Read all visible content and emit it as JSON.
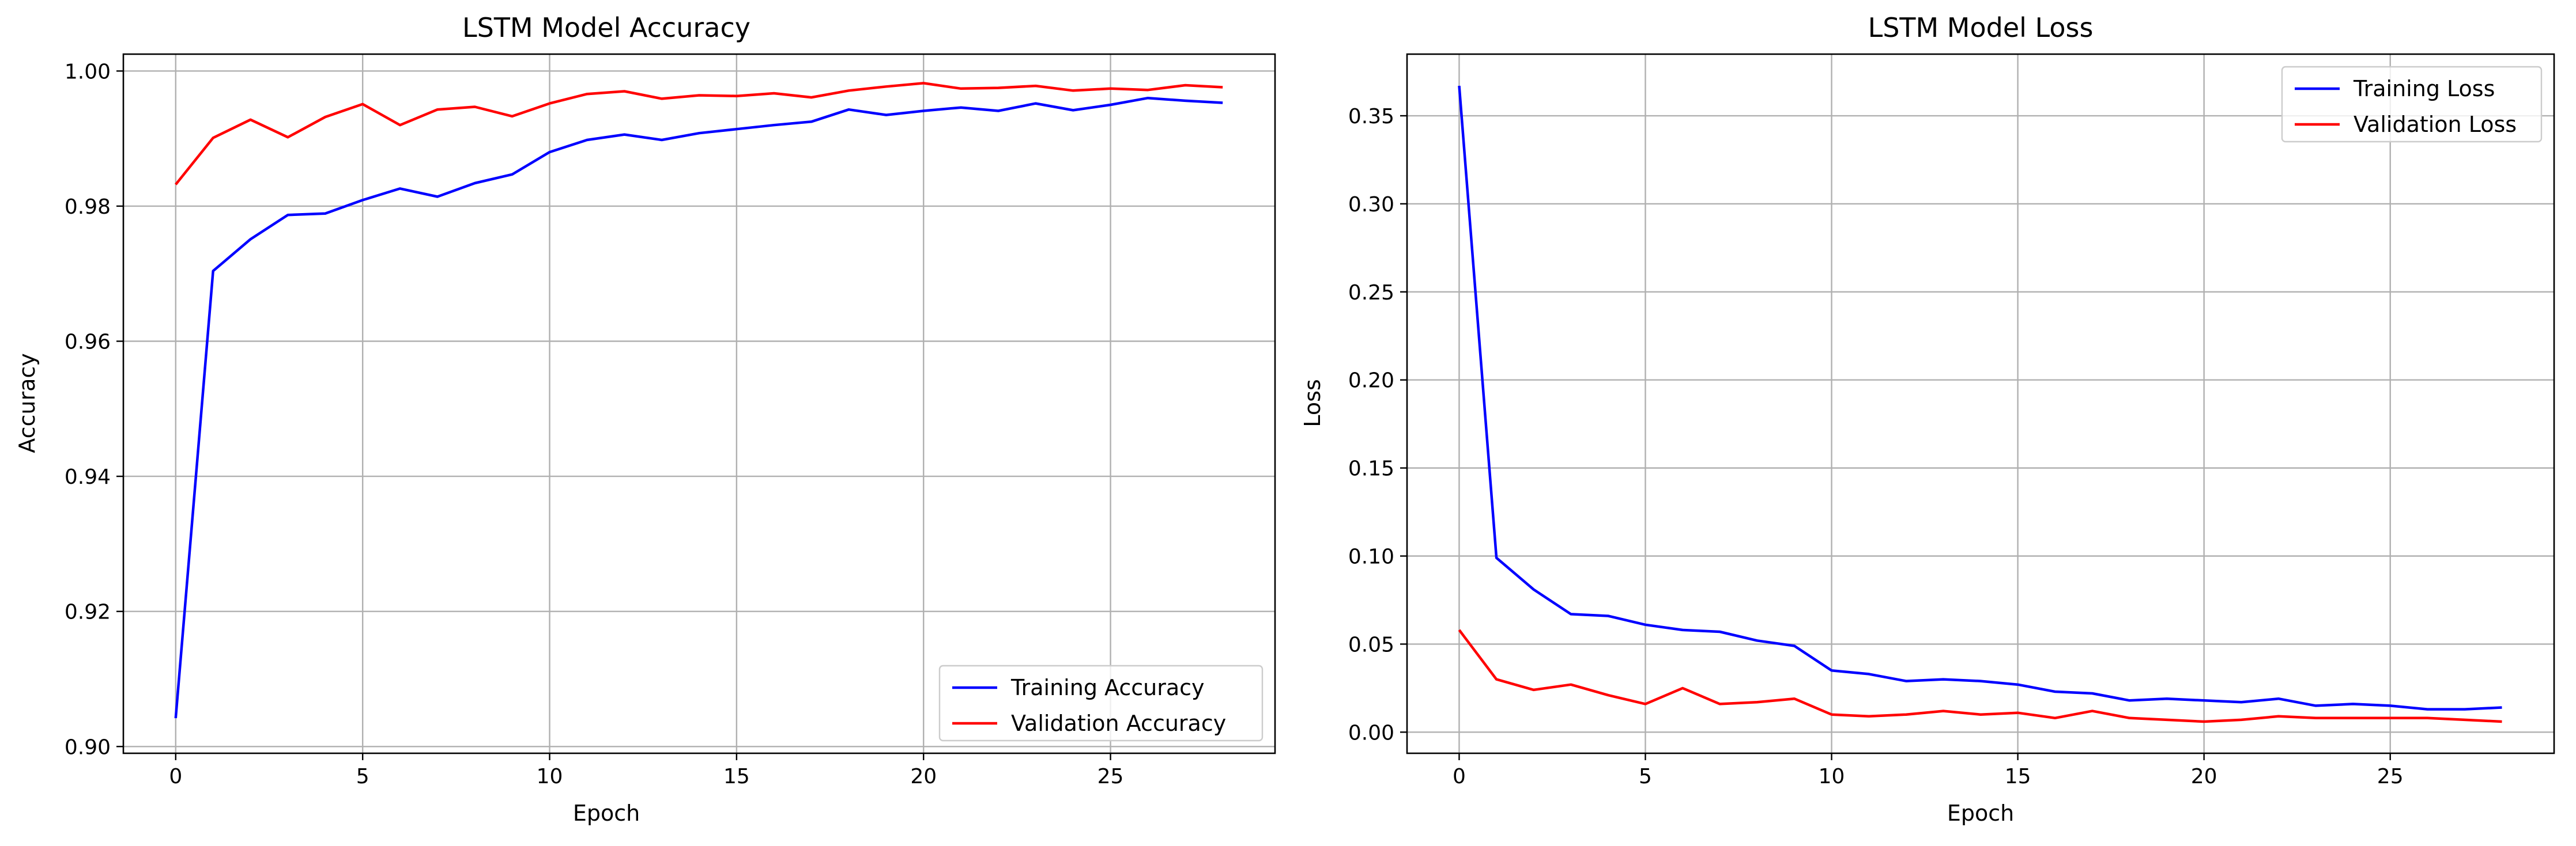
{
  "chart_data": [
    {
      "type": "line",
      "title": "LSTM Model Accuracy",
      "xlabel": "Epoch",
      "ylabel": "Accuracy",
      "xlim": [
        -1.4,
        29.4
      ],
      "ylim": [
        0.899,
        1.0025
      ],
      "xticks": [
        0,
        5,
        10,
        15,
        20,
        25
      ],
      "yticks": [
        0.9,
        0.92,
        0.94,
        0.96,
        0.98,
        1.0
      ],
      "ytick_decimals": 2,
      "grid": true,
      "legend_position": "lower-right",
      "x": [
        0,
        1,
        2,
        3,
        4,
        5,
        6,
        7,
        8,
        9,
        10,
        11,
        12,
        13,
        14,
        15,
        16,
        17,
        18,
        19,
        20,
        21,
        22,
        23,
        24,
        25,
        26,
        27,
        28
      ],
      "series": [
        {
          "name": "Training Accuracy",
          "color": "#0000ff",
          "values": [
            0.9042,
            0.9704,
            0.9751,
            0.9787,
            0.9789,
            0.9809,
            0.9826,
            0.9814,
            0.9834,
            0.9847,
            0.988,
            0.9898,
            0.9906,
            0.9898,
            0.9908,
            0.9914,
            0.992,
            0.9925,
            0.9943,
            0.9935,
            0.9941,
            0.9946,
            0.9941,
            0.9952,
            0.9942,
            0.995,
            0.996,
            0.9956,
            0.9953
          ]
        },
        {
          "name": "Validation Accuracy",
          "color": "#ff0000",
          "values": [
            0.9832,
            0.9901,
            0.9928,
            0.9902,
            0.9932,
            0.9951,
            0.992,
            0.9943,
            0.9947,
            0.9933,
            0.9952,
            0.9966,
            0.997,
            0.9959,
            0.9964,
            0.9963,
            0.9967,
            0.9961,
            0.9971,
            0.9977,
            0.9982,
            0.9974,
            0.9975,
            0.9978,
            0.9971,
            0.9974,
            0.9972,
            0.9979,
            0.9976
          ]
        }
      ]
    },
    {
      "type": "line",
      "title": "LSTM Model Loss",
      "xlabel": "Epoch",
      "ylabel": "Loss",
      "xlim": [
        -1.4,
        29.4
      ],
      "ylim": [
        -0.012,
        0.385
      ],
      "xticks": [
        0,
        5,
        10,
        15,
        20,
        25
      ],
      "yticks": [
        0.0,
        0.05,
        0.1,
        0.15,
        0.2,
        0.25,
        0.3,
        0.35
      ],
      "ytick_decimals": 2,
      "grid": true,
      "legend_position": "upper-right",
      "x": [
        0,
        1,
        2,
        3,
        4,
        5,
        6,
        7,
        8,
        9,
        10,
        11,
        12,
        13,
        14,
        15,
        16,
        17,
        18,
        19,
        20,
        21,
        22,
        23,
        24,
        25,
        26,
        27,
        28
      ],
      "series": [
        {
          "name": "Training Loss",
          "color": "#0000ff",
          "values": [
            0.367,
            0.099,
            0.081,
            0.067,
            0.066,
            0.061,
            0.058,
            0.057,
            0.052,
            0.049,
            0.035,
            0.033,
            0.029,
            0.03,
            0.029,
            0.027,
            0.023,
            0.022,
            0.018,
            0.019,
            0.018,
            0.017,
            0.019,
            0.015,
            0.016,
            0.015,
            0.013,
            0.013,
            0.014
          ]
        },
        {
          "name": "Validation Loss",
          "color": "#ff0000",
          "values": [
            0.058,
            0.03,
            0.024,
            0.027,
            0.021,
            0.016,
            0.025,
            0.016,
            0.017,
            0.019,
            0.01,
            0.009,
            0.01,
            0.012,
            0.01,
            0.011,
            0.008,
            0.012,
            0.008,
            0.007,
            0.006,
            0.007,
            0.009,
            0.008,
            0.008,
            0.008,
            0.008,
            0.007,
            0.006
          ]
        }
      ]
    }
  ]
}
